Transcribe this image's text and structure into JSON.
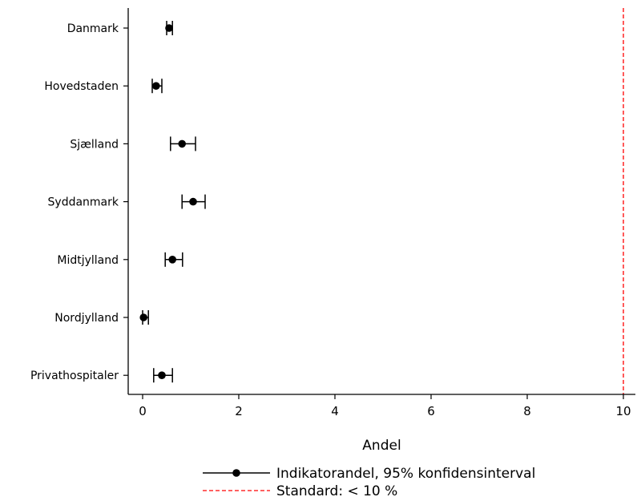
{
  "chart_data": {
    "type": "scatter",
    "orientation": "horizontal-forest",
    "categories": [
      "Danmark",
      "Hovedstaden",
      "Sjælland",
      "Syddanmark",
      "Midtjylland",
      "Nordjylland",
      "Privathospitaler"
    ],
    "series": [
      {
        "name": "Indikatorandel, 95% konfidensinterval",
        "values": [
          0.55,
          0.28,
          0.82,
          1.05,
          0.62,
          0.02,
          0.4
        ],
        "ci_low": [
          0.5,
          0.2,
          0.58,
          0.82,
          0.47,
          0.0,
          0.23
        ],
        "ci_high": [
          0.62,
          0.4,
          1.1,
          1.3,
          0.83,
          0.12,
          0.62
        ]
      }
    ],
    "reference_line": {
      "value": 10,
      "name": "Standard: < 10 %",
      "color": "#ff0000",
      "style": "dashed"
    },
    "xlabel": "Andel",
    "ylabel": "",
    "title": "",
    "xlim": [
      -0.3,
      10.25
    ],
    "xticks": [
      0,
      2,
      4,
      6,
      8,
      10
    ],
    "grid": false,
    "legend_position": "bottom-center"
  }
}
